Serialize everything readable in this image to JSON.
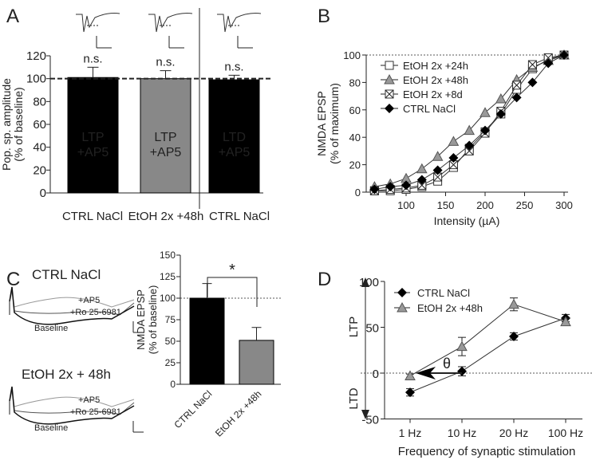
{
  "panel_letters": [
    "A",
    "B",
    "C",
    "D"
  ],
  "chart_data": [
    {
      "type": "bar",
      "panel": "A",
      "ylabel": "Pop. sp. amplitude",
      "ylabel2": "(% of baseline)",
      "ylim": [
        0,
        120
      ],
      "yticks": [
        0,
        20,
        40,
        60,
        80,
        100,
        120
      ],
      "categories": [
        "CTRL NaCl",
        "EtOH 2x +48h",
        "CTRL NaCl"
      ],
      "bar_labels": [
        [
          "LTP",
          "+AP5"
        ],
        [
          "LTP",
          "+AP5"
        ],
        [
          "LTD",
          "+AP5"
        ]
      ],
      "values": [
        101,
        100,
        99
      ],
      "errors": [
        9,
        7,
        4
      ],
      "significance": [
        "n.s.",
        "n.s.",
        "n.s."
      ],
      "bar_colors": [
        "#000000",
        "#888888",
        "#000000"
      ],
      "reference_line": 100
    },
    {
      "type": "line",
      "panel": "B",
      "ylabel": "NMDA EPSP",
      "ylabel2": "(% of maximum)",
      "xlabel": "Intensity (µA)",
      "xlim": [
        60,
        300
      ],
      "ylim": [
        0,
        100
      ],
      "xticks": [
        100,
        150,
        200,
        250,
        300
      ],
      "yticks": [
        0,
        20,
        40,
        60,
        80,
        100
      ],
      "x": [
        60,
        80,
        100,
        120,
        140,
        160,
        180,
        200,
        220,
        240,
        260,
        280,
        300
      ],
      "series": [
        {
          "name": "EtOH 2x +24h",
          "marker": "square-open",
          "values": [
            1,
            1,
            2,
            4,
            8,
            18,
            32,
            44,
            57,
            75,
            90,
            97,
            100
          ]
        },
        {
          "name": "EtOH 2x +48h",
          "marker": "triangle-gray",
          "values": [
            4,
            6,
            10,
            17,
            26,
            37,
            45,
            58,
            68,
            82,
            91,
            96,
            100
          ]
        },
        {
          "name": "EtOH 2x +8d",
          "marker": "square-cross",
          "values": [
            1,
            2,
            3,
            5,
            11,
            20,
            30,
            43,
            59,
            78,
            93,
            98,
            100
          ]
        },
        {
          "name": "CTRL NaCl",
          "marker": "diamond-black",
          "values": [
            2,
            4,
            5,
            9,
            16,
            25,
            34,
            45,
            57,
            69,
            80,
            94,
            100
          ]
        }
      ]
    },
    {
      "type": "bar",
      "panel": "C",
      "ylabel": "NMDA EPSP",
      "ylabel2": "(% of baseline)",
      "ylim": [
        0,
        150
      ],
      "yticks": [
        0,
        25,
        50,
        75,
        100,
        125,
        150
      ],
      "categories": [
        "CTRL NaCl",
        "EtOH 2x +48h"
      ],
      "values": [
        100,
        51
      ],
      "errors": [
        17,
        15
      ],
      "bar_colors": [
        "#000000",
        "#888888"
      ],
      "significance": "*",
      "reference_line": 100,
      "trace_titles": [
        "CTRL NaCl",
        "EtOH 2x + 48h"
      ],
      "trace_labels": [
        "+AP5",
        "+Ro 25-6981",
        "Baseline"
      ]
    },
    {
      "type": "line",
      "panel": "D",
      "xlabel": "Frequency of synaptic stimulation",
      "ylim": [
        -50,
        100
      ],
      "yticks": [
        -50,
        0,
        50,
        100
      ],
      "categories": [
        "1 Hz",
        "10 Hz",
        "20 Hz",
        "100 Hz"
      ],
      "side_labels": [
        "LTP",
        "LTD"
      ],
      "annotation": "θ",
      "series": [
        {
          "name": "CTRL NaCl",
          "marker": "diamond-black",
          "values": [
            -21,
            2,
            40,
            60
          ],
          "errors": [
            4,
            5,
            4,
            4
          ]
        },
        {
          "name": "EtOH 2x +48h",
          "marker": "triangle-gray",
          "values": [
            -3,
            29,
            75,
            56
          ],
          "errors": [
            2,
            10,
            7,
            4
          ]
        }
      ]
    }
  ]
}
